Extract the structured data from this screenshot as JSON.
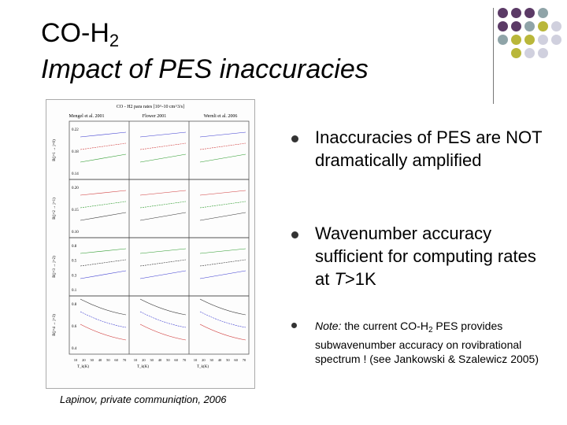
{
  "title": {
    "line1_main": "CO-H",
    "line1_sub": "2",
    "line2": "Impact of PES inaccuracies"
  },
  "decoration": {
    "dot_colors": [
      "#5b3a66",
      "#8fa4a8",
      "#b9b73a",
      "#d0d0de"
    ]
  },
  "figure": {
    "header": "CO - H2 para rates [10^-10 cm^3/s]",
    "columns": [
      "Mengel et al. 2001",
      "Flower 2001",
      "Wernli et al. 2006"
    ],
    "x_ticks": [
      "10",
      "20",
      "30",
      "40",
      "50",
      "60",
      "70"
    ],
    "x_labels": [
      "T_k(K)",
      "T_k(K)",
      "T_k(K)"
    ],
    "panels": [
      {
        "ylabel": "B(j=1 → j=0)",
        "ticks": [
          "0.22",
          "0.18",
          "0.14"
        ]
      },
      {
        "ylabel": "B(j=2 → j=1)",
        "ticks": [
          "0.20",
          "0.15",
          "0.10"
        ]
      },
      {
        "ylabel": "B(j=3 → j=2)",
        "ticks": [
          "0.8",
          "0.5",
          "0.3",
          "0.1"
        ]
      },
      {
        "ylabel": "B(j=4 → j=3)",
        "ticks": [
          "0.8",
          "0.6",
          "0.4"
        ]
      }
    ],
    "caption": "Lapinov, private communiqtion, 2006"
  },
  "bullets": [
    {
      "text": "Inaccuracies of PES are NOT dramatically amplified"
    },
    {
      "text_pre": "Wavenumber accuracy sufficient for computing rates at ",
      "italic": "T",
      "text_post": ">1K"
    },
    {
      "note_label": "Note:",
      "text_a": " the current CO-H",
      "sub": "2",
      "text_b": " PES provides subwavenumber accuracy on rovibrational spectrum ! (see Jankowski & Szalewicz 2005)"
    }
  ]
}
